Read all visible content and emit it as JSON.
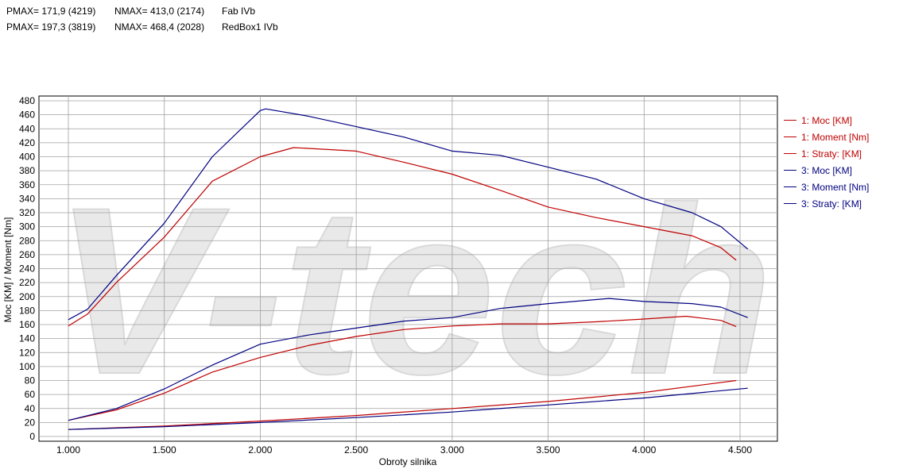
{
  "header": [
    {
      "pmax": "PMAX= 171,9 (4219)",
      "nmax": "NMAX= 413,0 (2174)",
      "name": "Fab IVb"
    },
    {
      "pmax": "PMAX= 197,3 (3819)",
      "nmax": "NMAX= 468,4 (2028)",
      "name": "RedBox1 IVb"
    }
  ],
  "watermark": "V-tech",
  "chart_data": {
    "type": "line",
    "xlabel": "Obroty silnika",
    "ylabel": "Moc [KM] / Moment [Nm]",
    "xlim": [
      847,
      4695
    ],
    "ylim": [
      0,
      480
    ],
    "grid": true,
    "legend_position": "right",
    "x_ticks": [
      1000,
      1500,
      2000,
      2500,
      3000,
      3500,
      4000,
      4500
    ],
    "x_tick_labels": [
      "1.000",
      "1.500",
      "2.000",
      "2.500",
      "3.000",
      "3.500",
      "4.000",
      "4.500"
    ],
    "y_ticks": [
      0,
      20,
      40,
      60,
      80,
      100,
      120,
      140,
      160,
      180,
      200,
      220,
      240,
      260,
      280,
      300,
      320,
      340,
      360,
      380,
      400,
      420,
      440,
      460,
      480
    ],
    "series": [
      {
        "name": "1: Moc [KM]",
        "color": "#c00000",
        "x": [
          1000,
          1250,
          1500,
          1750,
          2000,
          2250,
          2500,
          2750,
          3000,
          3250,
          3500,
          3750,
          4000,
          4219,
          4400,
          4480
        ],
        "y": [
          23,
          38,
          62,
          92,
          113,
          130,
          143,
          153,
          158,
          161,
          161,
          164,
          168,
          171.9,
          166,
          157
        ]
      },
      {
        "name": "1: Moment [Nm]",
        "color": "#c00000",
        "x": [
          1000,
          1100,
          1250,
          1500,
          1750,
          2000,
          2174,
          2500,
          2750,
          3000,
          3250,
          3500,
          3750,
          4000,
          4250,
          4400,
          4480
        ],
        "y": [
          158,
          175,
          220,
          285,
          365,
          400,
          413,
          408,
          392,
          375,
          352,
          328,
          313,
          300,
          287,
          270,
          252
        ]
      },
      {
        "name": "1: Straty: [KM]",
        "color": "#c00000",
        "x": [
          1000,
          1500,
          2000,
          2500,
          3000,
          3500,
          4000,
          4480
        ],
        "y": [
          10,
          15,
          22,
          30,
          40,
          50,
          63,
          80
        ]
      },
      {
        "name": "3: Moc [KM]",
        "color": "#000080",
        "x": [
          1000,
          1250,
          1500,
          1750,
          2000,
          2250,
          2500,
          2750,
          3000,
          3250,
          3500,
          3819,
          4000,
          4250,
          4400,
          4540
        ],
        "y": [
          23,
          40,
          68,
          102,
          132,
          145,
          155,
          165,
          170,
          183,
          190,
          197.3,
          193,
          190,
          185,
          170
        ]
      },
      {
        "name": "3: Moment [Nm]",
        "color": "#000080",
        "x": [
          1000,
          1100,
          1250,
          1500,
          1750,
          2000,
          2028,
          2250,
          2500,
          2750,
          3000,
          3250,
          3500,
          3750,
          4000,
          4250,
          4400,
          4540
        ],
        "y": [
          167,
          182,
          230,
          305,
          400,
          466,
          468.4,
          458,
          443,
          428,
          408,
          402,
          385,
          368,
          340,
          320,
          300,
          268
        ]
      },
      {
        "name": "3: Straty: [KM]",
        "color": "#000080",
        "x": [
          1000,
          1500,
          2000,
          2500,
          3000,
          3500,
          4000,
          4540
        ],
        "y": [
          10,
          14,
          20,
          27,
          35,
          45,
          55,
          69
        ]
      }
    ]
  }
}
